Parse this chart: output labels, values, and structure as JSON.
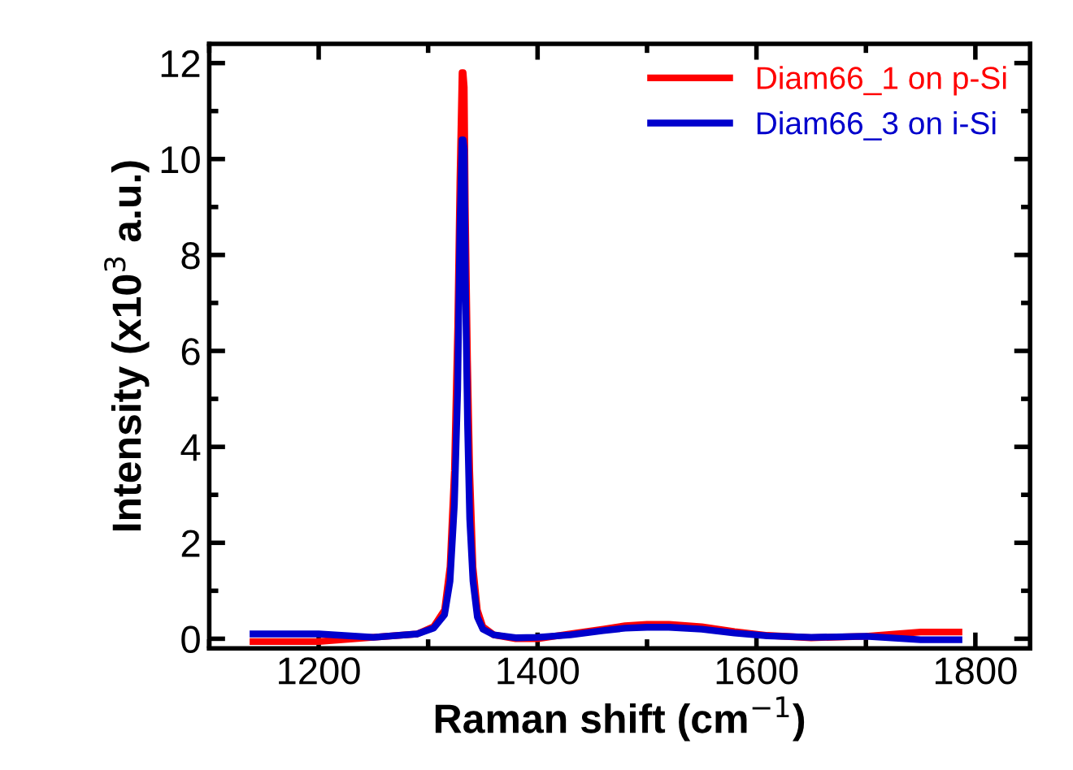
{
  "chart_data": {
    "type": "line",
    "xlabel": "Raman shift (cm$^{−1}$)",
    "ylabel": "Intensity (x10$^{3}$ a.u.)",
    "xlim": [
      1100,
      1850
    ],
    "ylim": [
      -0.2,
      12.4
    ],
    "xticks": [
      1200,
      1400,
      1600,
      1800
    ],
    "yticks": [
      0,
      2,
      4,
      6,
      8,
      10,
      12
    ],
    "legend": "top right",
    "grid": false,
    "marker": "none",
    "line_style": "solid",
    "series": [
      {
        "name": "Diam66_1 on p-Si",
        "color": "#ff0000",
        "x": [
          1140,
          1200,
          1250,
          1290,
          1305,
          1315,
          1320,
          1324,
          1327,
          1329,
          1331,
          1332,
          1333,
          1334,
          1336,
          1338,
          1341,
          1345,
          1350,
          1360,
          1380,
          1400,
          1430,
          1460,
          1480,
          1500,
          1520,
          1550,
          1580,
          1610,
          1650,
          1700,
          1750,
          1785
        ],
        "values": [
          -0.06,
          -0.06,
          0.03,
          0.1,
          0.25,
          0.6,
          1.5,
          3.5,
          6.5,
          9.5,
          11.8,
          11.8,
          11.5,
          9,
          5.8,
          3.5,
          1.5,
          0.6,
          0.25,
          0.08,
          0.0,
          0.0,
          0.1,
          0.2,
          0.27,
          0.3,
          0.3,
          0.25,
          0.15,
          0.07,
          0.02,
          0.05,
          0.14,
          0.14
        ]
      },
      {
        "name": "Diam66_3 on i-Si",
        "color": "#0000cc",
        "x": [
          1140,
          1200,
          1250,
          1290,
          1305,
          1315,
          1320,
          1324,
          1327,
          1329,
          1331,
          1332,
          1333,
          1334,
          1336,
          1338,
          1341,
          1345,
          1350,
          1360,
          1380,
          1400,
          1430,
          1460,
          1480,
          1500,
          1520,
          1550,
          1580,
          1610,
          1650,
          1700,
          1750,
          1785
        ],
        "values": [
          0.1,
          0.1,
          0.03,
          0.1,
          0.22,
          0.5,
          1.2,
          2.8,
          5.2,
          8.5,
          10.4,
          10.4,
          10.2,
          7.5,
          4.5,
          2.5,
          1.2,
          0.45,
          0.2,
          0.08,
          0.02,
          0.03,
          0.08,
          0.17,
          0.22,
          0.24,
          0.24,
          0.2,
          0.12,
          0.06,
          0.03,
          0.05,
          -0.02,
          -0.02
        ]
      }
    ]
  }
}
